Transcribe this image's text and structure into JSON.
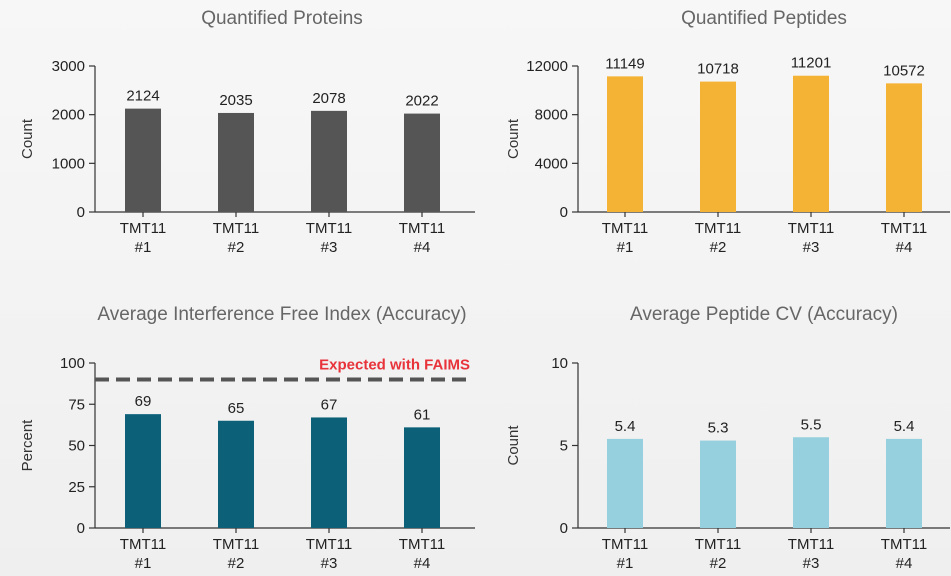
{
  "chart_data": [
    {
      "type": "bar",
      "title": "Quantified Proteins",
      "ylabel": "Count",
      "categories": [
        [
          "TMT11",
          "#1"
        ],
        [
          "TMT11",
          "#2"
        ],
        [
          "TMT11",
          "#3"
        ],
        [
          "TMT11",
          "#4"
        ]
      ],
      "values": [
        2124,
        2035,
        2078,
        2022
      ],
      "value_labels": [
        "2124",
        "2035",
        "2078",
        "2022"
      ],
      "ylim": [
        0,
        3000
      ],
      "yticks": [
        0,
        1000,
        2000,
        3000
      ],
      "bar_color": "#555555",
      "grid": false
    },
    {
      "type": "bar",
      "title": "Quantified Peptides",
      "ylabel": "Count",
      "categories": [
        [
          "TMT11",
          "#1"
        ],
        [
          "TMT11",
          "#2"
        ],
        [
          "TMT11",
          "#3"
        ],
        [
          "TMT11",
          "#4"
        ]
      ],
      "values": [
        11149,
        10718,
        11201,
        10572
      ],
      "value_labels": [
        "11149",
        "10718",
        "11201",
        "10572"
      ],
      "ylim": [
        0,
        12000
      ],
      "yticks": [
        0,
        4000,
        8000,
        12000
      ],
      "bar_color": "#f5b335",
      "grid": false
    },
    {
      "type": "bar",
      "title": "Average Interference Free Index (Accuracy)",
      "ylabel": "Percent",
      "categories": [
        [
          "TMT11",
          "#1"
        ],
        [
          "TMT11",
          "#2"
        ],
        [
          "TMT11",
          "#3"
        ],
        [
          "TMT11",
          "#4"
        ]
      ],
      "values": [
        69,
        65,
        67,
        61
      ],
      "value_labels": [
        "69",
        "65",
        "67",
        "61"
      ],
      "ylim": [
        0,
        100
      ],
      "yticks": [
        0,
        25,
        50,
        75,
        100
      ],
      "bar_color": "#0c6179",
      "grid": false,
      "reference_line": {
        "value": 90,
        "label": "Expected with FAIMS",
        "color": "#555555",
        "label_color": "#e8333a"
      }
    },
    {
      "type": "bar",
      "title": "Average Peptide CV (Accuracy)",
      "ylabel": "Count",
      "categories": [
        [
          "TMT11",
          "#1"
        ],
        [
          "TMT11",
          "#2"
        ],
        [
          "TMT11",
          "#3"
        ],
        [
          "TMT11",
          "#4"
        ]
      ],
      "values": [
        5.4,
        5.3,
        5.5,
        5.4
      ],
      "value_labels": [
        "5.4",
        "5.3",
        "5.5",
        "5.4"
      ],
      "ylim": [
        0,
        10
      ],
      "yticks": [
        0,
        5,
        10
      ],
      "bar_color": "#96d0de",
      "grid": false
    }
  ]
}
